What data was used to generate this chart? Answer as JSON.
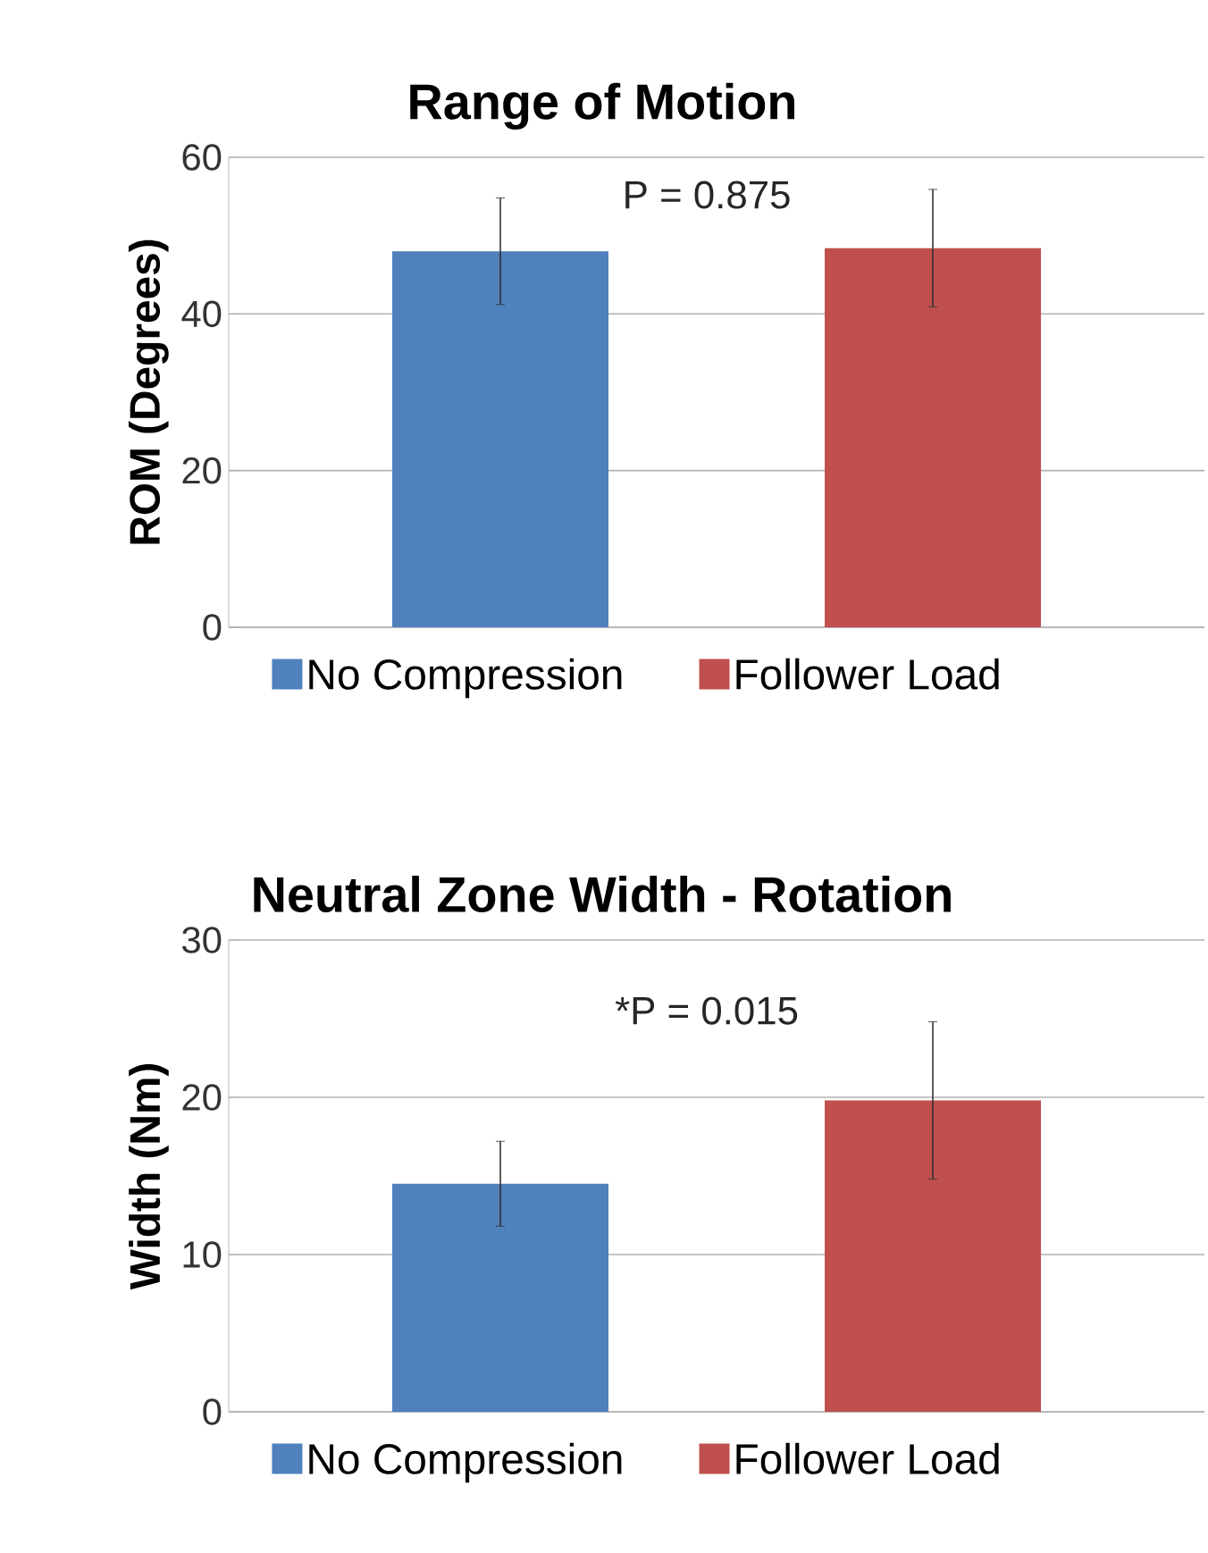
{
  "chart_data": [
    {
      "type": "bar",
      "title": "Range of Motion",
      "ylabel": "ROM (Degrees)",
      "categories": [
        null
      ],
      "series": [
        {
          "name": "No Compression",
          "color": "#4f81bd",
          "values": [
            48.0
          ],
          "errors": [
            6.8
          ]
        },
        {
          "name": "Follower Load",
          "color": "#c0504d",
          "values": [
            48.4
          ],
          "errors": [
            7.5
          ]
        }
      ],
      "ylim": [
        0,
        60
      ],
      "yticks": [
        0,
        20,
        40,
        60
      ],
      "grid": "y",
      "legend": "bottom",
      "tick_labels": "y",
      "annotations": [
        "P = 0.875"
      ]
    },
    {
      "type": "bar",
      "title": "Neutral Zone Width - Rotation",
      "ylabel": "Width (Nm)",
      "categories": [
        null
      ],
      "series": [
        {
          "name": "No Compression",
          "color": "#4f81bd",
          "values": [
            14.5
          ],
          "errors": [
            2.7
          ]
        },
        {
          "name": "Follower Load",
          "color": "#c0504d",
          "values": [
            19.8
          ],
          "errors": [
            5.0
          ]
        }
      ],
      "ylim": [
        0,
        30
      ],
      "yticks": [
        0,
        10,
        20,
        30
      ],
      "grid": "y",
      "legend": "bottom",
      "tick_labels": "y",
      "annotations": [
        "*P = 0.015"
      ]
    }
  ]
}
